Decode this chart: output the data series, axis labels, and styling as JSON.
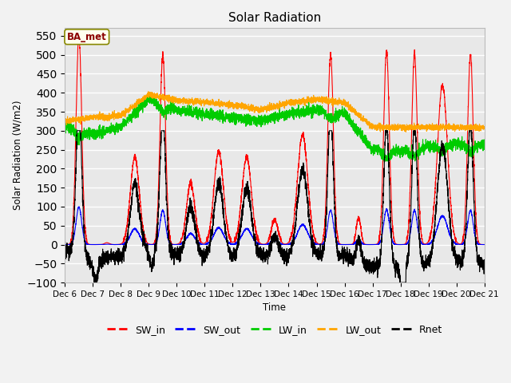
{
  "title": "Solar Radiation",
  "ylabel": "Solar Radiation (W/m2)",
  "xlabel": "Time",
  "ylim": [
    -100,
    570
  ],
  "yticks": [
    -100,
    -50,
    0,
    50,
    100,
    150,
    200,
    250,
    300,
    350,
    400,
    450,
    500,
    550
  ],
  "n_days": 15,
  "start_day": 6,
  "colors": {
    "SW_in": "#ff0000",
    "SW_out": "#0000ff",
    "LW_in": "#00cc00",
    "LW_out": "#ffa500",
    "Rnet": "#000000"
  },
  "annotation_text": "BA_met",
  "annotation_color": "#8B0000",
  "annotation_bg": "#ffffee",
  "plot_bg": "#e8e8e8",
  "grid_color": "#ffffff",
  "linewidth": 0.8,
  "legend_fontsize": 9,
  "title_fontsize": 11,
  "tick_fontsize": 7.5
}
